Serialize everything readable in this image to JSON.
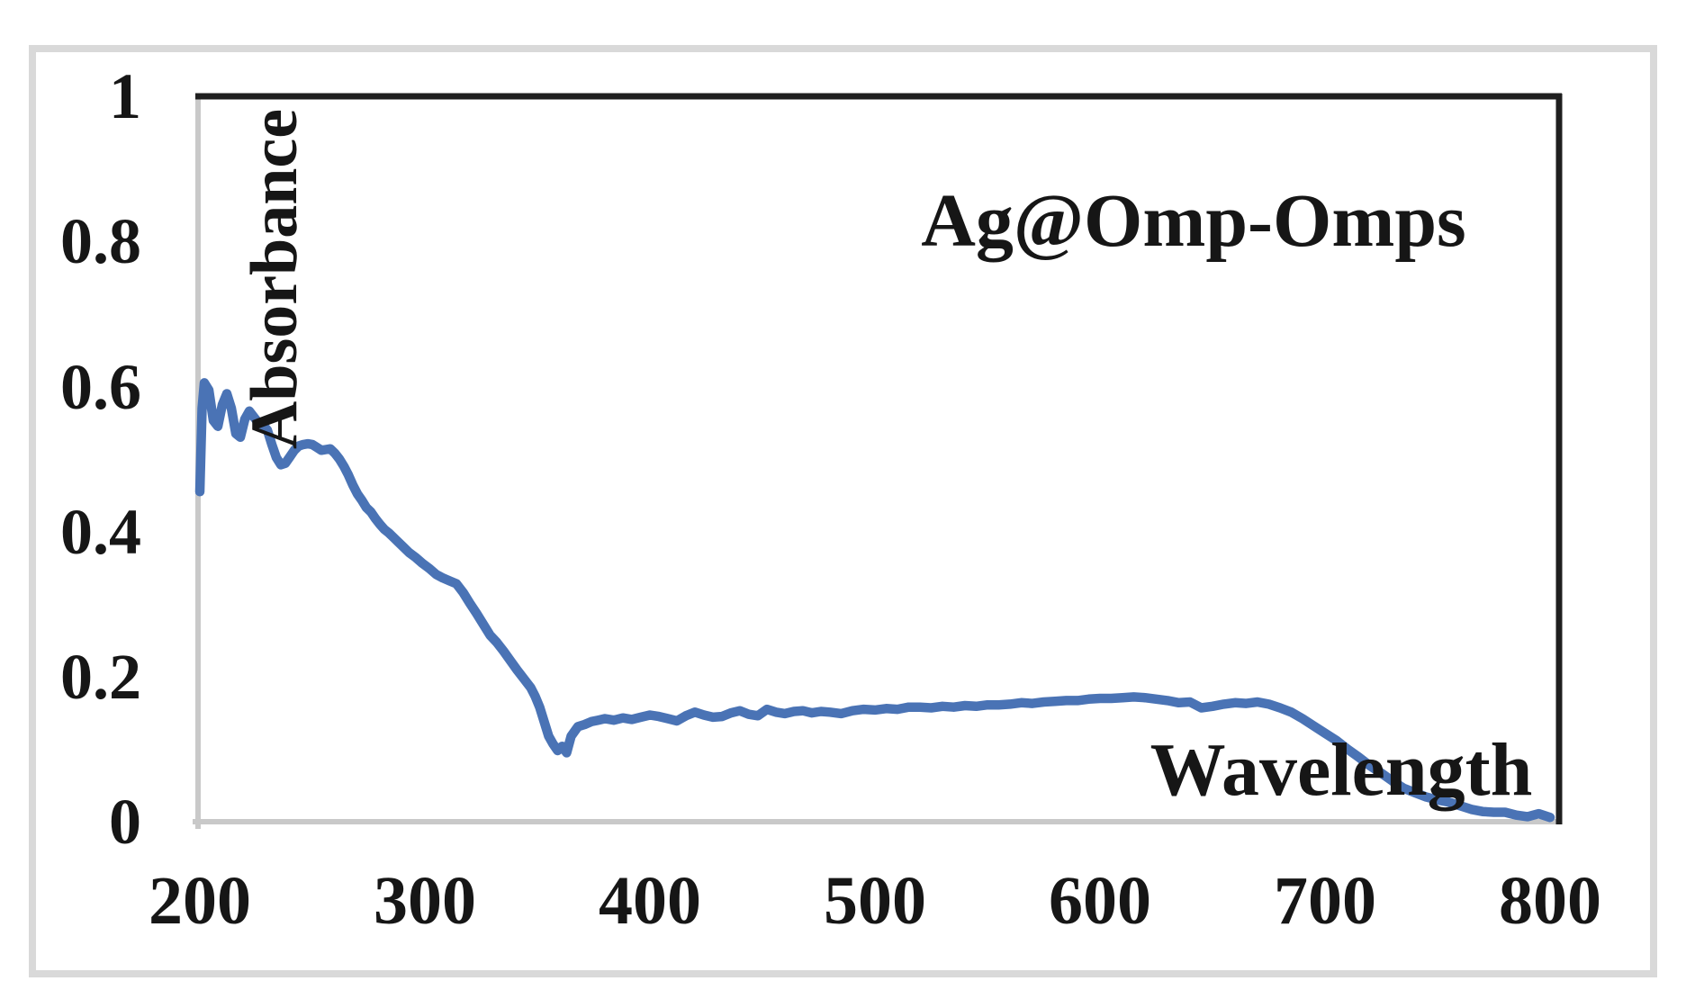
{
  "chart_data": {
    "type": "line",
    "title": "Ag@Omp-Omps",
    "xlabel": "Wavelength",
    "ylabel": "Absorbance",
    "xlim": [
      200,
      800
    ],
    "ylim": [
      0,
      1
    ],
    "x_ticks": [
      "200",
      "300",
      "400",
      "500",
      "600",
      "700",
      "800"
    ],
    "y_ticks": [
      "0",
      "0.2",
      "0.4",
      "0.6",
      "0.8",
      "1"
    ],
    "grid": false,
    "legend_position": "none",
    "line_color": "#4a73b5",
    "axis_line_color": "#c9c9c9",
    "plot_border_color": "#1f1f1f",
    "outer_frame_color": "#d9d9d9",
    "series": [
      {
        "name": "Ag@Omp-Omps",
        "color": "#4a73b5",
        "x": [
          200,
          201,
          202,
          204,
          206,
          208,
          210,
          212,
          214,
          216,
          218,
          220,
          222,
          224,
          226,
          228,
          230,
          232,
          234,
          236,
          238,
          240,
          242,
          244,
          246,
          248,
          250,
          252,
          254,
          256,
          258,
          260,
          262,
          264,
          266,
          268,
          270,
          272,
          274,
          276,
          278,
          280,
          282,
          284,
          286,
          288,
          290,
          293,
          296,
          299,
          302,
          305,
          308,
          311,
          314,
          317,
          320,
          323,
          326,
          329,
          332,
          335,
          338,
          341,
          344,
          347,
          349,
          351,
          353,
          355,
          357,
          359,
          361,
          363,
          365,
          368,
          371,
          374,
          377,
          380,
          384,
          388,
          392,
          396,
          400,
          404,
          408,
          412,
          416,
          420,
          424,
          428,
          432,
          436,
          440,
          444,
          448,
          452,
          456,
          460,
          464,
          468,
          472,
          476,
          480,
          485,
          490,
          495,
          500,
          505,
          510,
          515,
          520,
          525,
          530,
          535,
          540,
          545,
          550,
          555,
          560,
          565,
          570,
          575,
          580,
          585,
          590,
          595,
          600,
          605,
          610,
          615,
          620,
          625,
          630,
          635,
          640,
          645,
          650,
          655,
          660,
          665,
          670,
          675,
          680,
          685,
          690,
          695,
          700,
          705,
          710,
          715,
          720,
          725,
          730,
          735,
          740,
          745,
          750,
          755,
          760,
          765,
          770,
          775,
          780,
          785,
          790,
          795,
          800
        ],
        "y": [
          0.455,
          0.57,
          0.605,
          0.595,
          0.553,
          0.545,
          0.575,
          0.59,
          0.57,
          0.535,
          0.53,
          0.555,
          0.566,
          0.558,
          0.55,
          0.547,
          0.54,
          0.52,
          0.502,
          0.492,
          0.494,
          0.503,
          0.512,
          0.518,
          0.52,
          0.521,
          0.52,
          0.516,
          0.512,
          0.513,
          0.514,
          0.508,
          0.5,
          0.49,
          0.478,
          0.464,
          0.452,
          0.443,
          0.433,
          0.427,
          0.418,
          0.41,
          0.403,
          0.398,
          0.392,
          0.386,
          0.38,
          0.371,
          0.364,
          0.356,
          0.349,
          0.341,
          0.336,
          0.332,
          0.328,
          0.316,
          0.301,
          0.287,
          0.272,
          0.257,
          0.247,
          0.235,
          0.222,
          0.209,
          0.197,
          0.185,
          0.173,
          0.158,
          0.138,
          0.118,
          0.107,
          0.098,
          0.104,
          0.095,
          0.118,
          0.131,
          0.134,
          0.138,
          0.14,
          0.142,
          0.14,
          0.143,
          0.141,
          0.144,
          0.147,
          0.145,
          0.142,
          0.139,
          0.146,
          0.151,
          0.147,
          0.144,
          0.145,
          0.15,
          0.153,
          0.148,
          0.146,
          0.155,
          0.151,
          0.149,
          0.152,
          0.153,
          0.15,
          0.152,
          0.151,
          0.149,
          0.153,
          0.155,
          0.154,
          0.156,
          0.155,
          0.158,
          0.158,
          0.157,
          0.159,
          0.158,
          0.16,
          0.159,
          0.161,
          0.161,
          0.162,
          0.164,
          0.163,
          0.165,
          0.166,
          0.167,
          0.167,
          0.169,
          0.17,
          0.17,
          0.171,
          0.172,
          0.171,
          0.169,
          0.167,
          0.164,
          0.165,
          0.157,
          0.159,
          0.162,
          0.164,
          0.163,
          0.165,
          0.162,
          0.157,
          0.151,
          0.142,
          0.132,
          0.122,
          0.112,
          0.1,
          0.089,
          0.077,
          0.067,
          0.056,
          0.046,
          0.04,
          0.034,
          0.03,
          0.027,
          0.022,
          0.017,
          0.014,
          0.013,
          0.013,
          0.009,
          0.007,
          0.011,
          0.006
        ]
      }
    ]
  }
}
